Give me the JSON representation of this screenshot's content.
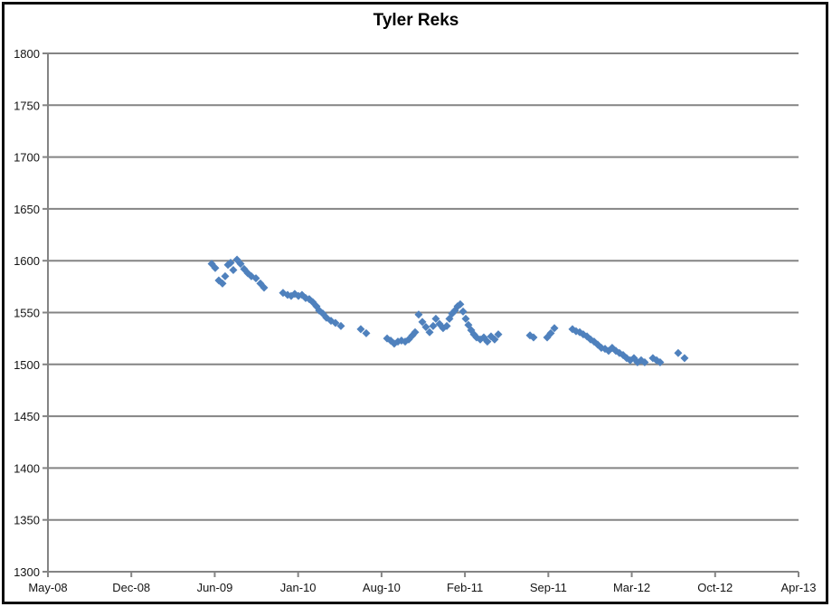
{
  "chart_data": {
    "type": "scatter",
    "title": "Tyler Reks",
    "legend": "none",
    "grid": "horizontal-on",
    "marker": "diamond",
    "marker_color": "#4F81BD",
    "axis_color": "#848484",
    "label_color": "#141414",
    "x_axis": {
      "unit": "months since May-2008",
      "tick_labels": [
        "May-08",
        "Dec-08",
        "Jun-09",
        "Jan-10",
        "Aug-10",
        "Feb-11",
        "Sep-11",
        "Mar-12",
        "Oct-12",
        "Apr-13"
      ],
      "range_months": [
        0,
        59
      ]
    },
    "y_axis": {
      "min": 1300,
      "max": 1800,
      "step": 50,
      "tick_labels": [
        "1800",
        "1750",
        "1700",
        "1650",
        "1600",
        "1550",
        "1500",
        "1450",
        "1400",
        "1350",
        "1300"
      ]
    },
    "points": [
      [
        12.87,
        1597
      ],
      [
        13.15,
        1593
      ],
      [
        13.43,
        1581
      ],
      [
        13.72,
        1578
      ],
      [
        13.93,
        1585
      ],
      [
        14.15,
        1596
      ],
      [
        14.36,
        1598
      ],
      [
        14.57,
        1591
      ],
      [
        14.86,
        1601
      ],
      [
        15.14,
        1597
      ],
      [
        15.42,
        1592
      ],
      [
        15.71,
        1588
      ],
      [
        15.99,
        1585
      ],
      [
        16.35,
        1583
      ],
      [
        16.7,
        1578
      ],
      [
        16.99,
        1574
      ],
      [
        18.48,
        1569
      ],
      [
        18.84,
        1567
      ],
      [
        19.12,
        1566
      ],
      [
        19.4,
        1568
      ],
      [
        19.69,
        1566
      ],
      [
        19.97,
        1567
      ],
      [
        20.26,
        1564
      ],
      [
        20.54,
        1563
      ],
      [
        20.82,
        1560
      ],
      [
        21.11,
        1556
      ],
      [
        21.32,
        1552
      ],
      [
        21.61,
        1549
      ],
      [
        21.89,
        1545
      ],
      [
        22.25,
        1542
      ],
      [
        22.6,
        1540
      ],
      [
        23.03,
        1537
      ],
      [
        24.59,
        1534
      ],
      [
        25.02,
        1530
      ],
      [
        26.66,
        1525
      ],
      [
        26.94,
        1523
      ],
      [
        27.22,
        1520
      ],
      [
        27.51,
        1522
      ],
      [
        27.79,
        1523
      ],
      [
        28.08,
        1522
      ],
      [
        28.36,
        1524
      ],
      [
        28.65,
        1528
      ],
      [
        28.86,
        1531
      ],
      [
        29.14,
        1548
      ],
      [
        29.43,
        1541
      ],
      [
        29.71,
        1536
      ],
      [
        30.0,
        1531
      ],
      [
        30.28,
        1537
      ],
      [
        30.49,
        1544
      ],
      [
        30.78,
        1539
      ],
      [
        31.06,
        1535
      ],
      [
        31.35,
        1537
      ],
      [
        31.56,
        1544
      ],
      [
        31.77,
        1549
      ],
      [
        31.99,
        1552
      ],
      [
        32.2,
        1556
      ],
      [
        32.41,
        1558
      ],
      [
        32.63,
        1551
      ],
      [
        32.84,
        1544
      ],
      [
        33.05,
        1538
      ],
      [
        33.27,
        1533
      ],
      [
        33.48,
        1529
      ],
      [
        33.69,
        1526
      ],
      [
        33.98,
        1524
      ],
      [
        34.26,
        1526
      ],
      [
        34.54,
        1522
      ],
      [
        34.83,
        1527
      ],
      [
        35.11,
        1524
      ],
      [
        35.4,
        1529
      ],
      [
        37.89,
        1528
      ],
      [
        38.17,
        1526
      ],
      [
        39.24,
        1526
      ],
      [
        39.52,
        1530
      ],
      [
        39.81,
        1535
      ],
      [
        41.23,
        1534
      ],
      [
        41.51,
        1532
      ],
      [
        41.8,
        1531
      ],
      [
        42.08,
        1529
      ],
      [
        42.37,
        1527
      ],
      [
        42.65,
        1524
      ],
      [
        42.93,
        1522
      ],
      [
        43.22,
        1519
      ],
      [
        43.5,
        1516
      ],
      [
        43.79,
        1515
      ],
      [
        44.07,
        1513
      ],
      [
        44.35,
        1516
      ],
      [
        44.64,
        1513
      ],
      [
        44.92,
        1511
      ],
      [
        45.21,
        1509
      ],
      [
        45.49,
        1506
      ],
      [
        45.77,
        1504
      ],
      [
        46.06,
        1506
      ],
      [
        46.34,
        1502
      ],
      [
        46.63,
        1504
      ],
      [
        46.91,
        1502
      ],
      [
        47.55,
        1506
      ],
      [
        47.84,
        1504
      ],
      [
        48.12,
        1502
      ],
      [
        49.54,
        1511
      ],
      [
        50.04,
        1506
      ]
    ]
  }
}
